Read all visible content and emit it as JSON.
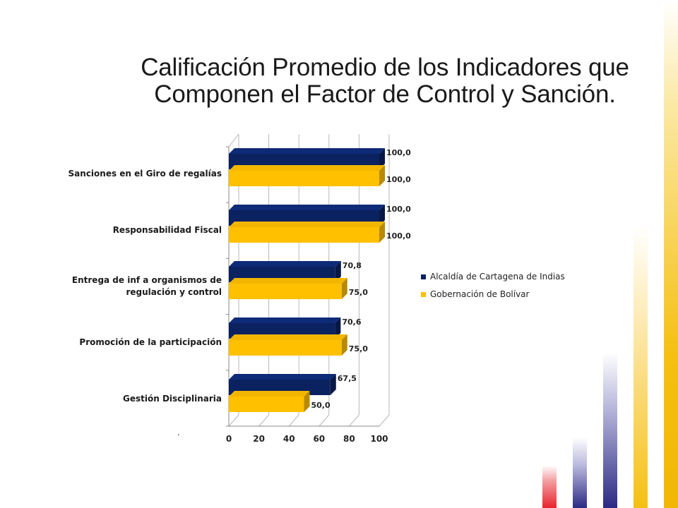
{
  "slide": {
    "title_line_1": "Calificación Promedio de los Indicadores que",
    "title_line_2": "Componen el Factor de Control y Sanción.",
    "footnote_mark": "."
  },
  "colors": {
    "navy": "#0b2260",
    "gold": "#ffc000",
    "stripe_gold": "#f5c012",
    "stripe_navy": "#2b2a84",
    "stripe_red": "#e8242c"
  },
  "chart_data": {
    "type": "bar",
    "orientation": "horizontal",
    "style": "3d-clustered",
    "categories": [
      "Sanciones en el Giro de regalías",
      "Responsabilidad Fiscal",
      "Entrega de inf a organismos de regulación y control",
      "Promoción de la participación",
      "Gestión Disciplinaria"
    ],
    "series": [
      {
        "name": "Alcaldía de Cartagena de Indias",
        "color": "#0b2260",
        "values": [
          100.0,
          100.0,
          70.8,
          70.6,
          67.5
        ],
        "labels": [
          "100,0",
          "100,0",
          "70,8",
          "70,6",
          "67,5"
        ]
      },
      {
        "name": "Gobernación de Bolívar",
        "color": "#ffc000",
        "values": [
          100.0,
          100.0,
          75.0,
          75.0,
          50.0
        ],
        "labels": [
          "100,0",
          "100,0",
          "75,0",
          "75,0",
          "50,0"
        ]
      }
    ],
    "x_ticks": [
      "0",
      "20",
      "40",
      "60",
      "80",
      "100"
    ],
    "xlim": [
      0,
      100
    ],
    "grid": true,
    "legend_position": "right"
  }
}
